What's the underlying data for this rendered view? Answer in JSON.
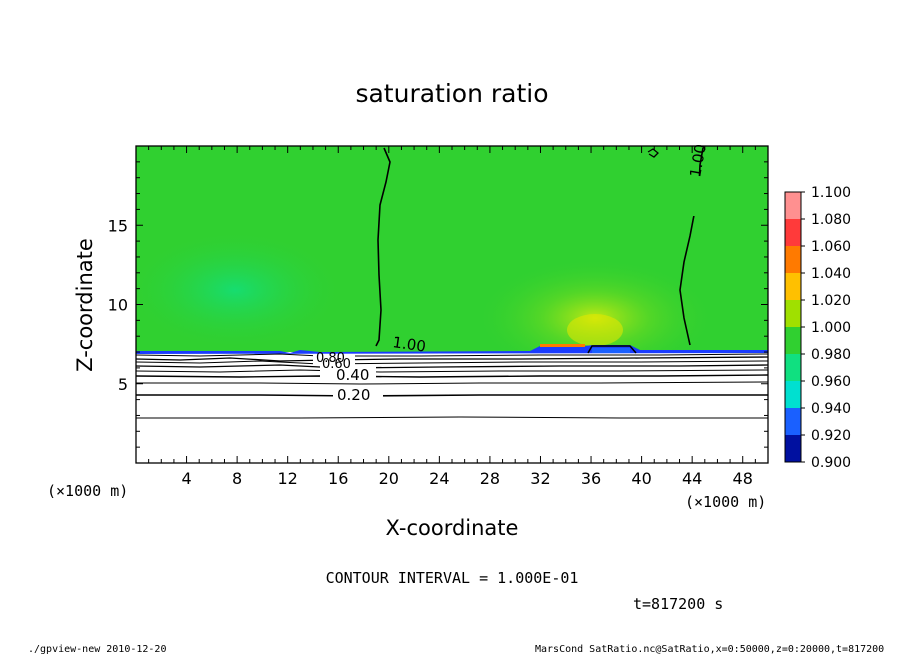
{
  "chart_data": {
    "type": "heatmap",
    "title": "saturation ratio",
    "xlabel": "X-coordinate",
    "ylabel": "Z-coordinate",
    "x_unit_label": "(×1000 m)",
    "x_unit_label_right": "(×1000 m)",
    "xlim": [
      0,
      50
    ],
    "ylim": [
      0,
      20
    ],
    "x_ticks": [
      4,
      8,
      12,
      16,
      20,
      24,
      28,
      32,
      36,
      40,
      44,
      48
    ],
    "y_ticks": [
      5,
      10,
      15
    ],
    "colorbar": {
      "levels": [
        "1.100",
        "1.080",
        "1.060",
        "1.040",
        "1.020",
        "1.000",
        "0.980",
        "0.960",
        "0.940",
        "0.920",
        "0.900"
      ],
      "colors": [
        "#ff9090",
        "#ff3a3a",
        "#ff7a00",
        "#ffc000",
        "#a0e000",
        "#30d030",
        "#10e080",
        "#00e0d0",
        "#1a60ff",
        "#0010a0",
        "#7010b0"
      ]
    },
    "contour_labels": [
      {
        "text": "1.00",
        "x": 21.5,
        "z": 7.5
      },
      {
        "text": "1.00",
        "x": 44.3,
        "z": 17.2
      },
      {
        "text": "0.80",
        "x": 16.8,
        "z": 6.6
      },
      {
        "text": "0.60",
        "x": 17.0,
        "z": 6.1
      },
      {
        "text": "0.40",
        "x": 17.8,
        "z": 5.5
      },
      {
        "text": "0.20",
        "x": 17.2,
        "z": 4.3
      }
    ],
    "contour_interval": "CONTOUR INTERVAL = 1.000E-01",
    "time_label": "t=817200 s"
  },
  "footer": {
    "left": "./gpview-new   2010-12-20",
    "right": "MarsCond_SatRatio.nc@SatRatio,x=0:50000,z=0:20000,t=817200"
  }
}
